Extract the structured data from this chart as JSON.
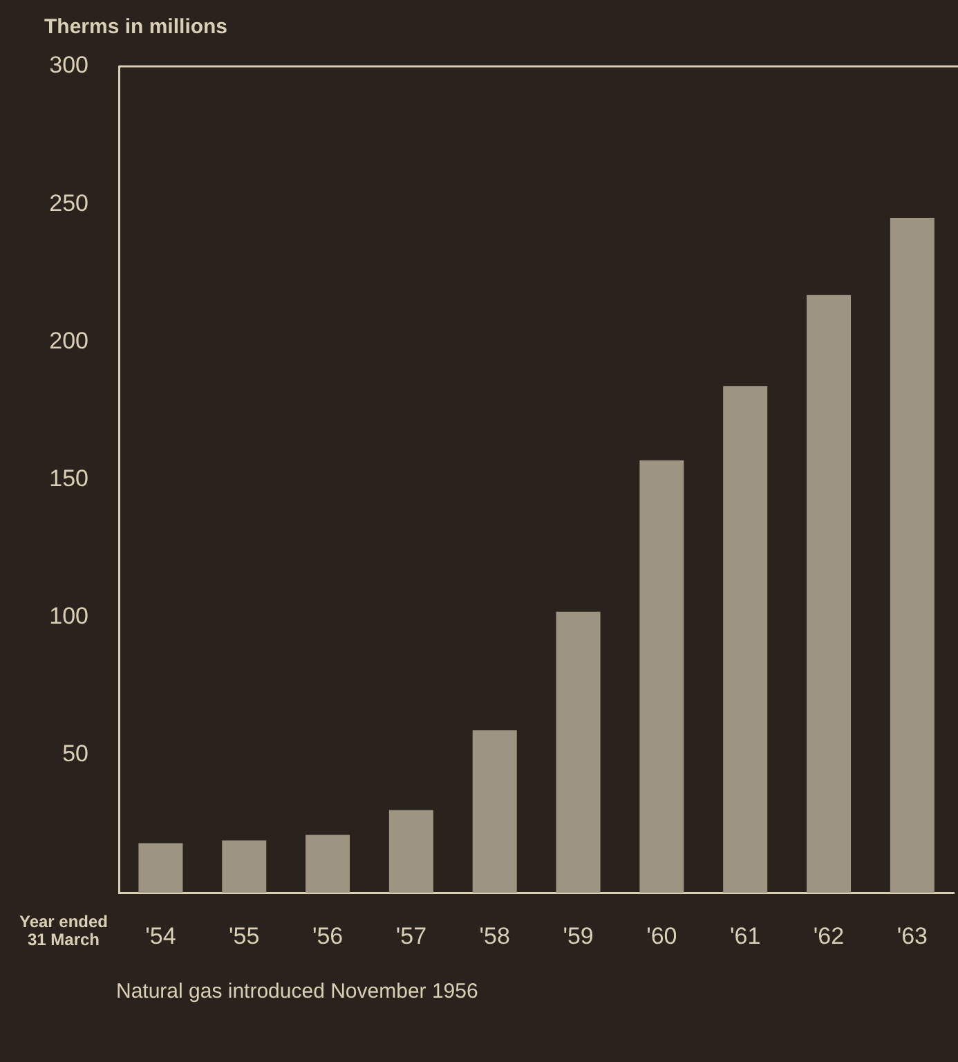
{
  "chart_data": {
    "type": "bar",
    "ylabel": "Therms in millions",
    "xlabel": "Year ended\n31 March",
    "categories": [
      "'54",
      "'55",
      "'56",
      "'57",
      "'58",
      "'59",
      "'60",
      "'61",
      "'62",
      "'63"
    ],
    "values": [
      18,
      19,
      21,
      30,
      59,
      102,
      157,
      184,
      217,
      245
    ],
    "color": "#9d9482",
    "ylim": [
      0,
      300
    ],
    "yticks": [
      50,
      100,
      150,
      200,
      250,
      300
    ],
    "grid": false,
    "legend": false,
    "annotations": [
      "Natural gas introduced November 1956"
    ]
  }
}
